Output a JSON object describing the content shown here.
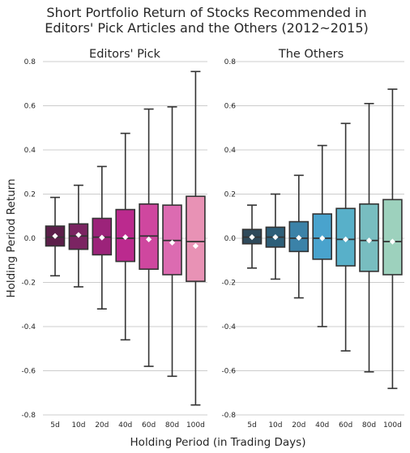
{
  "chart_data": {
    "type": "box",
    "title": [
      "Short Portfolio Return of Stocks Recommended in",
      "Editors' Pick Articles and the Others (2012~2015)"
    ],
    "xlabel": "Holding Period (in Trading Days)",
    "ylabel": "Holding Period Return",
    "ylim": [
      -0.8,
      0.8
    ],
    "yticks": [
      "-0.8",
      "-0.6",
      "-0.4",
      "-0.2",
      "0.0",
      "0.2",
      "0.4",
      "0.6",
      "0.8"
    ],
    "ytick_values": [
      -0.8,
      -0.6,
      -0.4,
      -0.2,
      0.0,
      0.2,
      0.4,
      0.6,
      0.8
    ],
    "categories": [
      "5d",
      "10d",
      "20d",
      "40d",
      "60d",
      "80d",
      "100d"
    ],
    "grid": "horizontal",
    "panels": [
      {
        "name": "Editors' Pick",
        "boxes": [
          {
            "category": "5d",
            "whisker_low": -0.17,
            "q1": -0.035,
            "median": 0.005,
            "q3": 0.055,
            "whisker_high": 0.185,
            "mean": 0.01,
            "color": "#5c1f4a"
          },
          {
            "category": "10d",
            "whisker_low": -0.22,
            "q1": -0.05,
            "median": 0.01,
            "q3": 0.065,
            "whisker_high": 0.24,
            "mean": 0.015,
            "color": "#7b2462"
          },
          {
            "category": "20d",
            "whisker_low": -0.32,
            "q1": -0.075,
            "median": 0.005,
            "q3": 0.09,
            "whisker_high": 0.325,
            "mean": 0.003,
            "color": "#9c237a"
          },
          {
            "category": "40d",
            "whisker_low": -0.46,
            "q1": -0.105,
            "median": 0.0,
            "q3": 0.13,
            "whisker_high": 0.475,
            "mean": 0.005,
            "color": "#bb2a8e"
          },
          {
            "category": "60d",
            "whisker_low": -0.58,
            "q1": -0.14,
            "median": 0.01,
            "q3": 0.155,
            "whisker_high": 0.585,
            "mean": -0.005,
            "color": "#cf479f"
          },
          {
            "category": "80d",
            "whisker_low": -0.625,
            "q1": -0.165,
            "median": -0.01,
            "q3": 0.15,
            "whisker_high": 0.595,
            "mean": -0.02,
            "color": "#dc6bb1"
          },
          {
            "category": "100d",
            "whisker_low": -0.755,
            "q1": -0.195,
            "median": -0.015,
            "q3": 0.19,
            "whisker_high": 0.755,
            "mean": -0.035,
            "color": "#e892b5"
          }
        ]
      },
      {
        "name": "The Others",
        "boxes": [
          {
            "category": "5d",
            "whisker_low": -0.135,
            "q1": -0.025,
            "median": 0.005,
            "q3": 0.04,
            "whisker_high": 0.15,
            "mean": 0.005,
            "color": "#2f4a5b"
          },
          {
            "category": "10d",
            "whisker_low": -0.185,
            "q1": -0.04,
            "median": 0.005,
            "q3": 0.05,
            "whisker_high": 0.2,
            "mean": 0.005,
            "color": "#2e5f79"
          },
          {
            "category": "20d",
            "whisker_low": -0.27,
            "q1": -0.06,
            "median": 0.0,
            "q3": 0.075,
            "whisker_high": 0.285,
            "mean": 0.002,
            "color": "#3b82a8"
          },
          {
            "category": "40d",
            "whisker_low": -0.4,
            "q1": -0.095,
            "median": 0.0,
            "q3": 0.11,
            "whisker_high": 0.42,
            "mean": 0.0,
            "color": "#49a3cd"
          },
          {
            "category": "60d",
            "whisker_low": -0.51,
            "q1": -0.125,
            "median": -0.005,
            "q3": 0.135,
            "whisker_high": 0.52,
            "mean": -0.005,
            "color": "#58b0c9"
          },
          {
            "category": "80d",
            "whisker_low": -0.605,
            "q1": -0.15,
            "median": -0.01,
            "q3": 0.155,
            "whisker_high": 0.61,
            "mean": -0.01,
            "color": "#78bdc0"
          },
          {
            "category": "100d",
            "whisker_low": -0.68,
            "q1": -0.165,
            "median": -0.015,
            "q3": 0.175,
            "whisker_high": 0.675,
            "mean": -0.015,
            "color": "#9dd1bd"
          }
        ]
      }
    ]
  }
}
